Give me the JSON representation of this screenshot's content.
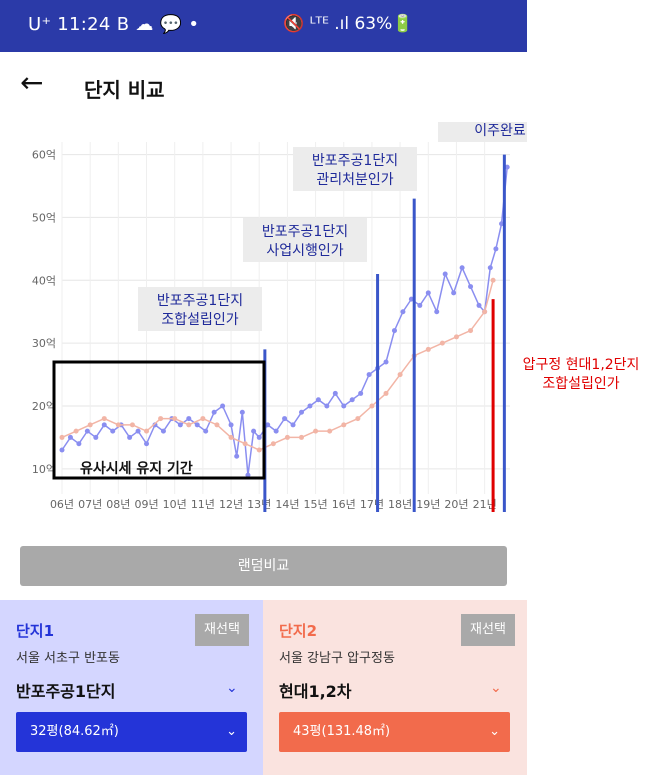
{
  "status_bar": {
    "carrier": "U⁺ 11:24  B ☁ 💬 •",
    "icons": "🔇 ᴸᵀᴱ .ıl 63%🔋",
    "battery": "63%"
  },
  "header": {
    "back_icon": "←",
    "title": "단지 비교"
  },
  "chart_data": {
    "type": "line",
    "y_tick_labels": [
      "60억",
      "50억",
      "40억",
      "30억",
      "20억",
      "10억"
    ],
    "y_tick_values": [
      60,
      50,
      40,
      30,
      20,
      10
    ],
    "x_tick_labels": [
      "06년",
      "07년",
      "08년",
      "09년",
      "10년",
      "11년",
      "12년",
      "13년",
      "14년",
      "15년",
      "16년",
      "17년",
      "18년",
      "19년",
      "20년",
      "21년"
    ],
    "ylim": [
      6,
      62
    ],
    "grid": true,
    "series": [
      {
        "color": "#8a8ef0",
        "x": [
          2006.0,
          2006.3,
          2006.6,
          2006.9,
          2007.2,
          2007.5,
          2007.8,
          2008.1,
          2008.4,
          2008.7,
          2009.0,
          2009.3,
          2009.6,
          2009.9,
          2010.2,
          2010.5,
          2010.8,
          2011.1,
          2011.4,
          2011.7,
          2012.0,
          2012.2,
          2012.4,
          2012.6,
          2012.8,
          2013.0,
          2013.3,
          2013.6,
          2013.9,
          2014.2,
          2014.5,
          2014.8,
          2015.1,
          2015.4,
          2015.7,
          2016.0,
          2016.3,
          2016.6,
          2016.9,
          2017.2,
          2017.5,
          2017.8,
          2018.1,
          2018.4,
          2018.7,
          2019.0,
          2019.3,
          2019.6,
          2019.9,
          2020.2,
          2020.5,
          2020.8,
          2021.0,
          2021.2,
          2021.4,
          2021.6,
          2021.8
        ],
        "y": [
          13,
          15,
          14,
          16,
          15,
          17,
          16,
          17,
          15,
          16,
          14,
          17,
          16,
          18,
          17,
          18,
          17,
          16,
          19,
          20,
          17,
          12,
          19,
          9,
          16,
          15,
          17,
          16,
          18,
          17,
          19,
          20,
          21,
          20,
          22,
          20,
          21,
          22,
          25,
          26,
          27,
          32,
          35,
          37,
          36,
          38,
          35,
          41,
          38,
          42,
          39,
          36,
          35,
          42,
          45,
          49,
          58
        ]
      },
      {
        "color": "#f2b5a6",
        "x": [
          2006.0,
          2006.5,
          2007.0,
          2007.5,
          2008.0,
          2008.5,
          2009.0,
          2009.5,
          2010.0,
          2010.5,
          2011.0,
          2011.5,
          2012.0,
          2012.5,
          2013.0,
          2013.5,
          2014.0,
          2014.5,
          2015.0,
          2015.5,
          2016.0,
          2016.5,
          2017.0,
          2017.5,
          2018.0,
          2018.5,
          2019.0,
          2019.5,
          2020.0,
          2020.5,
          2021.0,
          2021.3
        ],
        "y": [
          15,
          16,
          17,
          18,
          17,
          17,
          16,
          18,
          18,
          17,
          18,
          17,
          15,
          14,
          13,
          14,
          15,
          15,
          16,
          16,
          17,
          18,
          20,
          22,
          25,
          28,
          29,
          30,
          31,
          32,
          35,
          40
        ]
      }
    ],
    "event_lines": [
      {
        "x": 2013.2,
        "y_top": 29,
        "color": "#3a56c9"
      },
      {
        "x": 2017.2,
        "y_top": 41,
        "color": "#3a56c9"
      },
      {
        "x": 2018.5,
        "y_top": 53,
        "color": "#3a56c9"
      },
      {
        "x": 2021.7,
        "y_top": 60,
        "color": "#3a56c9"
      },
      {
        "x": 2021.3,
        "y_top": 37,
        "color": "#e00000"
      }
    ],
    "annotations": [
      {
        "text": "반포주공1단지\n조합설립인가"
      },
      {
        "text": "반포주공1단지\n사업시행인가"
      },
      {
        "text": "반포주공1단지\n관리처분인가"
      },
      {
        "text": "반포주공1단지\n이주완료"
      },
      {
        "text": "압구정 현대1,2단지\n조합설립인가"
      }
    ],
    "highlight_box_label": "유사시세 유지 기간"
  },
  "random_compare_label": "랜덤비교",
  "complex1": {
    "label": "단지1",
    "reselect": "재선택",
    "location": "서울 서초구 반포동",
    "name": "반포주공1단지",
    "size": "32평(84.62㎡)",
    "color": "#2434d8"
  },
  "complex2": {
    "label": "단지2",
    "reselect": "재선택",
    "location": "서울 강남구 압구정동",
    "name": "현대1,2차",
    "size": "43평(131.48㎡)",
    "color": "#f26b4c"
  },
  "chevron_icon": "⌄"
}
